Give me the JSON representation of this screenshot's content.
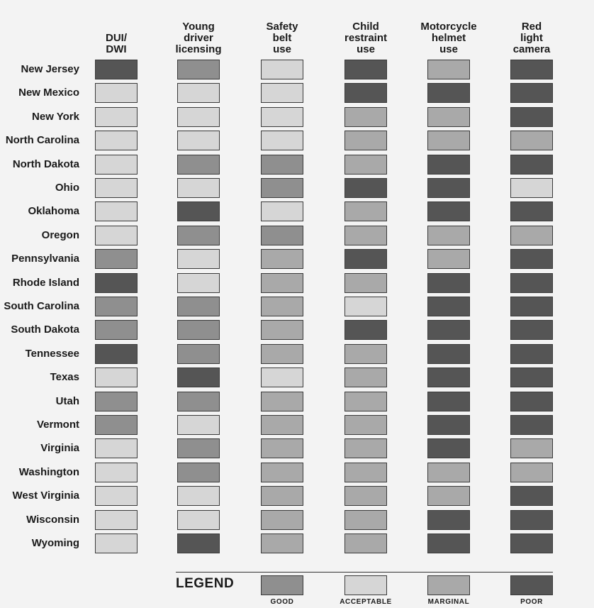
{
  "chart_data": {
    "type": "table",
    "columns": [
      {
        "label_lines": [
          "DUI/",
          "DWI"
        ]
      },
      {
        "label_lines": [
          "Young",
          "driver",
          "licensing"
        ]
      },
      {
        "label_lines": [
          "Safety",
          "belt",
          "use"
        ]
      },
      {
        "label_lines": [
          "Child",
          "restraint",
          "use"
        ]
      },
      {
        "label_lines": [
          "Motorcycle",
          "helmet",
          "use"
        ]
      },
      {
        "label_lines": [
          "Red",
          "light",
          "camera"
        ]
      }
    ],
    "ratings": [
      "GOOD",
      "ACCEPTABLE",
      "MARGINAL",
      "POOR"
    ],
    "rating_colors": {
      "GOOD": "#8f8f8f",
      "ACCEPTABLE": "#d6d6d6",
      "MARGINAL": "#a9a9a9",
      "POOR": "#555555"
    },
    "rows": [
      {
        "state": "New Jersey",
        "values": [
          "POOR",
          "GOOD",
          "ACCEPTABLE",
          "POOR",
          "MARGINAL",
          "POOR"
        ]
      },
      {
        "state": "New Mexico",
        "values": [
          "ACCEPTABLE",
          "ACCEPTABLE",
          "ACCEPTABLE",
          "POOR",
          "POOR",
          "POOR"
        ]
      },
      {
        "state": "New York",
        "values": [
          "ACCEPTABLE",
          "ACCEPTABLE",
          "ACCEPTABLE",
          "MARGINAL",
          "MARGINAL",
          "POOR"
        ]
      },
      {
        "state": "North Carolina",
        "values": [
          "ACCEPTABLE",
          "ACCEPTABLE",
          "ACCEPTABLE",
          "MARGINAL",
          "MARGINAL",
          "MARGINAL"
        ]
      },
      {
        "state": "North Dakota",
        "values": [
          "ACCEPTABLE",
          "GOOD",
          "GOOD",
          "MARGINAL",
          "POOR",
          "POOR"
        ]
      },
      {
        "state": "Ohio",
        "values": [
          "ACCEPTABLE",
          "ACCEPTABLE",
          "GOOD",
          "POOR",
          "POOR",
          "ACCEPTABLE"
        ]
      },
      {
        "state": "Oklahoma",
        "values": [
          "ACCEPTABLE",
          "POOR",
          "ACCEPTABLE",
          "MARGINAL",
          "POOR",
          "POOR"
        ]
      },
      {
        "state": "Oregon",
        "values": [
          "ACCEPTABLE",
          "GOOD",
          "GOOD",
          "MARGINAL",
          "MARGINAL",
          "MARGINAL"
        ]
      },
      {
        "state": "Pennsylvania",
        "values": [
          "GOOD",
          "ACCEPTABLE",
          "MARGINAL",
          "POOR",
          "MARGINAL",
          "POOR"
        ]
      },
      {
        "state": "Rhode Island",
        "values": [
          "POOR",
          "ACCEPTABLE",
          "MARGINAL",
          "MARGINAL",
          "POOR",
          "POOR"
        ]
      },
      {
        "state": "South Carolina",
        "values": [
          "GOOD",
          "GOOD",
          "MARGINAL",
          "ACCEPTABLE",
          "POOR",
          "POOR"
        ]
      },
      {
        "state": "South Dakota",
        "values": [
          "GOOD",
          "GOOD",
          "MARGINAL",
          "POOR",
          "POOR",
          "POOR"
        ]
      },
      {
        "state": "Tennessee",
        "values": [
          "POOR",
          "GOOD",
          "MARGINAL",
          "MARGINAL",
          "POOR",
          "POOR"
        ]
      },
      {
        "state": "Texas",
        "values": [
          "ACCEPTABLE",
          "POOR",
          "ACCEPTABLE",
          "MARGINAL",
          "POOR",
          "POOR"
        ]
      },
      {
        "state": "Utah",
        "values": [
          "GOOD",
          "GOOD",
          "MARGINAL",
          "MARGINAL",
          "POOR",
          "POOR"
        ]
      },
      {
        "state": "Vermont",
        "values": [
          "GOOD",
          "ACCEPTABLE",
          "MARGINAL",
          "MARGINAL",
          "POOR",
          "POOR"
        ]
      },
      {
        "state": "Virginia",
        "values": [
          "ACCEPTABLE",
          "GOOD",
          "MARGINAL",
          "MARGINAL",
          "POOR",
          "MARGINAL"
        ]
      },
      {
        "state": "Washington",
        "values": [
          "ACCEPTABLE",
          "GOOD",
          "MARGINAL",
          "MARGINAL",
          "MARGINAL",
          "MARGINAL"
        ]
      },
      {
        "state": "West Virginia",
        "values": [
          "ACCEPTABLE",
          "ACCEPTABLE",
          "MARGINAL",
          "MARGINAL",
          "MARGINAL",
          "POOR"
        ]
      },
      {
        "state": "Wisconsin",
        "values": [
          "ACCEPTABLE",
          "ACCEPTABLE",
          "MARGINAL",
          "MARGINAL",
          "POOR",
          "POOR"
        ]
      },
      {
        "state": "Wyoming",
        "values": [
          "ACCEPTABLE",
          "POOR",
          "MARGINAL",
          "MARGINAL",
          "POOR",
          "POOR"
        ]
      }
    ],
    "legend": {
      "title": "LEGEND",
      "items": [
        "GOOD",
        "ACCEPTABLE",
        "MARGINAL",
        "POOR"
      ]
    }
  }
}
